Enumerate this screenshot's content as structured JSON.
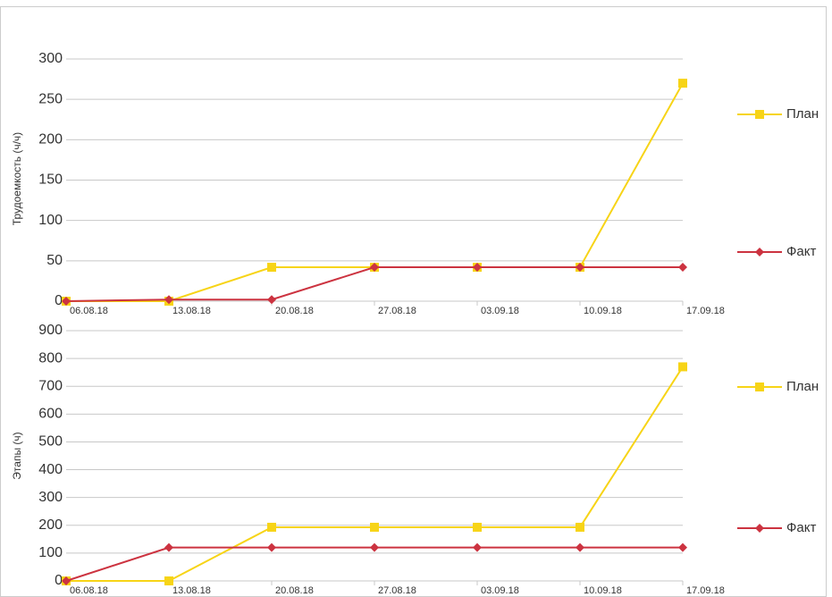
{
  "chart_data": [
    {
      "type": "line",
      "y_label": "Трудоемкость (ч/ч)",
      "categories": [
        "06.08.18",
        "13.08.18",
        "20.08.18",
        "27.08.18",
        "03.09.18",
        "10.09.18",
        "17.09.18"
      ],
      "series": [
        {
          "name": "План",
          "color": "#f7d417",
          "marker": "square",
          "values": [
            0,
            0,
            42,
            42,
            42,
            42,
            270
          ]
        },
        {
          "name": "Факт",
          "color": "#cc3340",
          "marker": "diamond",
          "values": [
            0,
            2,
            2,
            42,
            42,
            42,
            42
          ]
        }
      ],
      "ylim": [
        0,
        300
      ],
      "yticks": [
        0,
        50,
        100,
        150,
        200,
        250,
        300
      ],
      "grid": true,
      "legend": "right"
    },
    {
      "type": "line",
      "y_label": "Этапы (ч)",
      "categories": [
        "06.08.18",
        "13.08.18",
        "20.08.18",
        "27.08.18",
        "03.09.18",
        "10.09.18",
        "17.09.18"
      ],
      "series": [
        {
          "name": "План",
          "color": "#f7d417",
          "marker": "square",
          "values": [
            0,
            0,
            193,
            193,
            193,
            193,
            770
          ]
        },
        {
          "name": "Факт",
          "color": "#cc3340",
          "marker": "diamond",
          "values": [
            0,
            120,
            120,
            120,
            120,
            120,
            120
          ]
        }
      ],
      "ylim": [
        0,
        900
      ],
      "yticks": [
        0,
        100,
        200,
        300,
        400,
        500,
        600,
        700,
        800,
        900
      ],
      "grid": true,
      "legend": "right"
    }
  ]
}
